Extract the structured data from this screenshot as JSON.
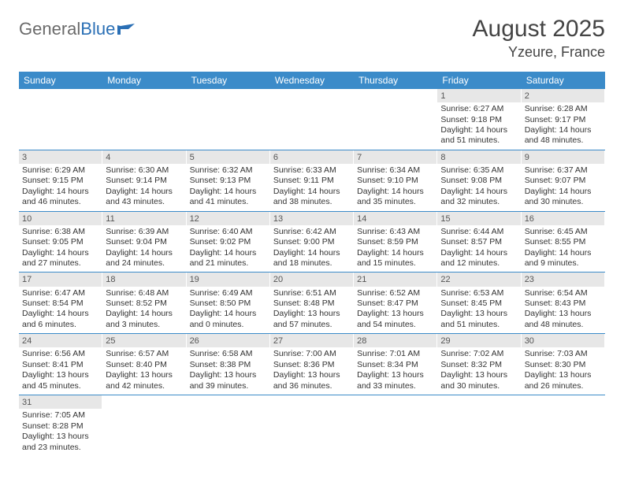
{
  "logo": {
    "text_a": "General",
    "text_b": "Blue"
  },
  "title": "August 2025",
  "location": "Yzeure, France",
  "colors": {
    "header_bg": "#3b8bc9",
    "header_text": "#ffffff",
    "daynum_bg": "#e7e7e7",
    "border": "#3b8bc9",
    "logo_gray": "#6a6a6a",
    "logo_blue": "#2a6fb5"
  },
  "day_headers": [
    "Sunday",
    "Monday",
    "Tuesday",
    "Wednesday",
    "Thursday",
    "Friday",
    "Saturday"
  ],
  "weeks": [
    [
      null,
      null,
      null,
      null,
      null,
      {
        "n": "1",
        "sunrise": "Sunrise: 6:27 AM",
        "sunset": "Sunset: 9:18 PM",
        "day": "Daylight: 14 hours and 51 minutes."
      },
      {
        "n": "2",
        "sunrise": "Sunrise: 6:28 AM",
        "sunset": "Sunset: 9:17 PM",
        "day": "Daylight: 14 hours and 48 minutes."
      }
    ],
    [
      {
        "n": "3",
        "sunrise": "Sunrise: 6:29 AM",
        "sunset": "Sunset: 9:15 PM",
        "day": "Daylight: 14 hours and 46 minutes."
      },
      {
        "n": "4",
        "sunrise": "Sunrise: 6:30 AM",
        "sunset": "Sunset: 9:14 PM",
        "day": "Daylight: 14 hours and 43 minutes."
      },
      {
        "n": "5",
        "sunrise": "Sunrise: 6:32 AM",
        "sunset": "Sunset: 9:13 PM",
        "day": "Daylight: 14 hours and 41 minutes."
      },
      {
        "n": "6",
        "sunrise": "Sunrise: 6:33 AM",
        "sunset": "Sunset: 9:11 PM",
        "day": "Daylight: 14 hours and 38 minutes."
      },
      {
        "n": "7",
        "sunrise": "Sunrise: 6:34 AM",
        "sunset": "Sunset: 9:10 PM",
        "day": "Daylight: 14 hours and 35 minutes."
      },
      {
        "n": "8",
        "sunrise": "Sunrise: 6:35 AM",
        "sunset": "Sunset: 9:08 PM",
        "day": "Daylight: 14 hours and 32 minutes."
      },
      {
        "n": "9",
        "sunrise": "Sunrise: 6:37 AM",
        "sunset": "Sunset: 9:07 PM",
        "day": "Daylight: 14 hours and 30 minutes."
      }
    ],
    [
      {
        "n": "10",
        "sunrise": "Sunrise: 6:38 AM",
        "sunset": "Sunset: 9:05 PM",
        "day": "Daylight: 14 hours and 27 minutes."
      },
      {
        "n": "11",
        "sunrise": "Sunrise: 6:39 AM",
        "sunset": "Sunset: 9:04 PM",
        "day": "Daylight: 14 hours and 24 minutes."
      },
      {
        "n": "12",
        "sunrise": "Sunrise: 6:40 AM",
        "sunset": "Sunset: 9:02 PM",
        "day": "Daylight: 14 hours and 21 minutes."
      },
      {
        "n": "13",
        "sunrise": "Sunrise: 6:42 AM",
        "sunset": "Sunset: 9:00 PM",
        "day": "Daylight: 14 hours and 18 minutes."
      },
      {
        "n": "14",
        "sunrise": "Sunrise: 6:43 AM",
        "sunset": "Sunset: 8:59 PM",
        "day": "Daylight: 14 hours and 15 minutes."
      },
      {
        "n": "15",
        "sunrise": "Sunrise: 6:44 AM",
        "sunset": "Sunset: 8:57 PM",
        "day": "Daylight: 14 hours and 12 minutes."
      },
      {
        "n": "16",
        "sunrise": "Sunrise: 6:45 AM",
        "sunset": "Sunset: 8:55 PM",
        "day": "Daylight: 14 hours and 9 minutes."
      }
    ],
    [
      {
        "n": "17",
        "sunrise": "Sunrise: 6:47 AM",
        "sunset": "Sunset: 8:54 PM",
        "day": "Daylight: 14 hours and 6 minutes."
      },
      {
        "n": "18",
        "sunrise": "Sunrise: 6:48 AM",
        "sunset": "Sunset: 8:52 PM",
        "day": "Daylight: 14 hours and 3 minutes."
      },
      {
        "n": "19",
        "sunrise": "Sunrise: 6:49 AM",
        "sunset": "Sunset: 8:50 PM",
        "day": "Daylight: 14 hours and 0 minutes."
      },
      {
        "n": "20",
        "sunrise": "Sunrise: 6:51 AM",
        "sunset": "Sunset: 8:48 PM",
        "day": "Daylight: 13 hours and 57 minutes."
      },
      {
        "n": "21",
        "sunrise": "Sunrise: 6:52 AM",
        "sunset": "Sunset: 8:47 PM",
        "day": "Daylight: 13 hours and 54 minutes."
      },
      {
        "n": "22",
        "sunrise": "Sunrise: 6:53 AM",
        "sunset": "Sunset: 8:45 PM",
        "day": "Daylight: 13 hours and 51 minutes."
      },
      {
        "n": "23",
        "sunrise": "Sunrise: 6:54 AM",
        "sunset": "Sunset: 8:43 PM",
        "day": "Daylight: 13 hours and 48 minutes."
      }
    ],
    [
      {
        "n": "24",
        "sunrise": "Sunrise: 6:56 AM",
        "sunset": "Sunset: 8:41 PM",
        "day": "Daylight: 13 hours and 45 minutes."
      },
      {
        "n": "25",
        "sunrise": "Sunrise: 6:57 AM",
        "sunset": "Sunset: 8:40 PM",
        "day": "Daylight: 13 hours and 42 minutes."
      },
      {
        "n": "26",
        "sunrise": "Sunrise: 6:58 AM",
        "sunset": "Sunset: 8:38 PM",
        "day": "Daylight: 13 hours and 39 minutes."
      },
      {
        "n": "27",
        "sunrise": "Sunrise: 7:00 AM",
        "sunset": "Sunset: 8:36 PM",
        "day": "Daylight: 13 hours and 36 minutes."
      },
      {
        "n": "28",
        "sunrise": "Sunrise: 7:01 AM",
        "sunset": "Sunset: 8:34 PM",
        "day": "Daylight: 13 hours and 33 minutes."
      },
      {
        "n": "29",
        "sunrise": "Sunrise: 7:02 AM",
        "sunset": "Sunset: 8:32 PM",
        "day": "Daylight: 13 hours and 30 minutes."
      },
      {
        "n": "30",
        "sunrise": "Sunrise: 7:03 AM",
        "sunset": "Sunset: 8:30 PM",
        "day": "Daylight: 13 hours and 26 minutes."
      }
    ],
    [
      {
        "n": "31",
        "sunrise": "Sunrise: 7:05 AM",
        "sunset": "Sunset: 8:28 PM",
        "day": "Daylight: 13 hours and 23 minutes."
      },
      null,
      null,
      null,
      null,
      null,
      null
    ]
  ]
}
